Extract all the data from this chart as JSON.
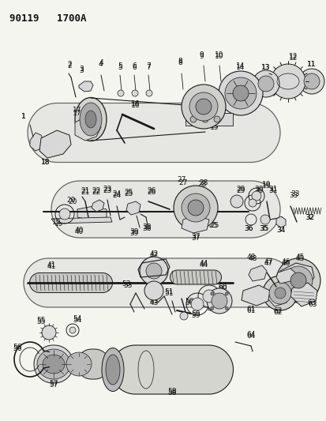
{
  "title_line1": "90119",
  "title_line2": "1700A",
  "bg": "#f5f5f0",
  "lc": "#1a1a1a",
  "fc_light": "#d8d8d8",
  "fc_mid": "#b8b8b8",
  "fc_dark": "#999999",
  "lw_main": 0.8,
  "lw_thin": 0.5,
  "lw_thick": 1.2
}
